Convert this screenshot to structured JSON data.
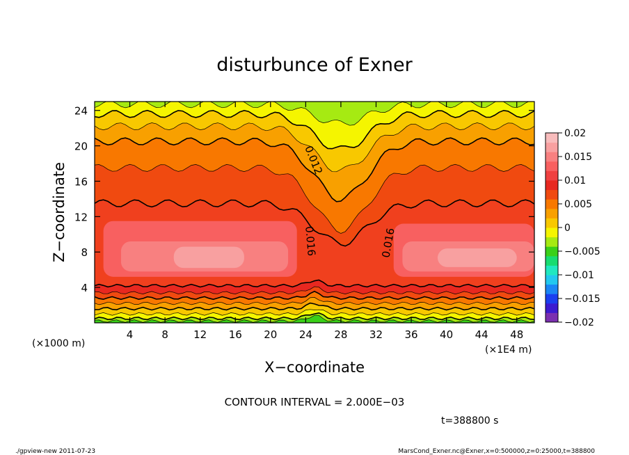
{
  "chart_data": {
    "type": "heatmap",
    "title": "disturbunce of Exner",
    "xlabel": "X−coordinate",
    "ylabel": "Z−coordinate",
    "x_unit_label": "(×1000 m)",
    "x_scale_label": "(×1E4 m)",
    "x_ticks": [
      "4",
      "8",
      "12",
      "16",
      "20",
      "24",
      "28",
      "32",
      "36",
      "40",
      "44",
      "48"
    ],
    "y_ticks": [
      "4",
      "8",
      "12",
      "16",
      "20",
      "24"
    ],
    "xlim": [
      0,
      50
    ],
    "ylim": [
      0,
      25
    ],
    "colorbar": {
      "ticks": [
        "0.02",
        "0.015",
        "0.01",
        "0.005",
        "0",
        "−0.005",
        "−0.01",
        "−0.015",
        "−0.02"
      ],
      "range": [
        -0.02,
        0.02
      ],
      "colors": [
        "#7b2fb0",
        "#3c1ad0",
        "#1a3ff0",
        "#1a86f5",
        "#22c8ef",
        "#20e8c0",
        "#18dc70",
        "#3ad018",
        "#a6ea12",
        "#f5f500",
        "#f8c800",
        "#f8a000",
        "#f87800",
        "#f04a10",
        "#e82820",
        "#f04040",
        "#f86060",
        "#f88080",
        "#f8a0a0",
        "#f8bcbc"
      ]
    },
    "contour_labels": [
      "0.012",
      "0.016",
      "0.016"
    ],
    "contour_interval": "CONTOUR INTERVAL = 2.000E−03",
    "time_label": "t=388800 s"
  },
  "footer": {
    "left": "./gpview-new   2011-07-23",
    "right": "MarsCond_Exner.nc@Exner,x=0:500000,z=0:25000,t=388800"
  }
}
